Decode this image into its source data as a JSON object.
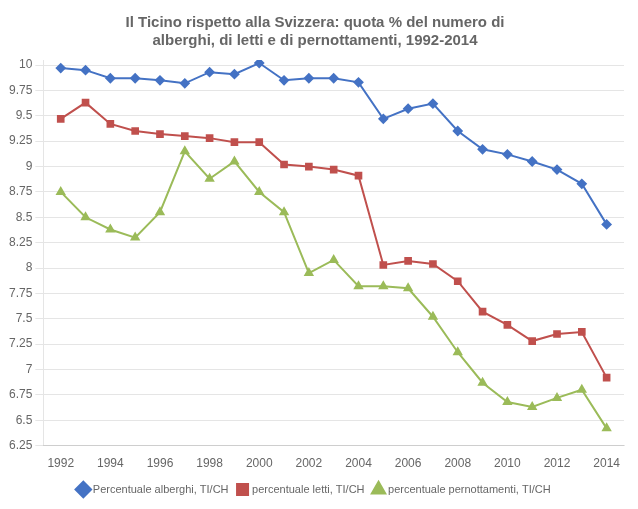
{
  "chart_data": {
    "type": "line",
    "title": "Il Ticino rispetto alla Svizzera: quota % del numero di\nalberghi, di letti e di pernottamenti, 1992-2014",
    "x": [
      1992,
      1993,
      1994,
      1995,
      1996,
      1997,
      1998,
      1999,
      2000,
      2001,
      2002,
      2003,
      2004,
      2005,
      2006,
      2007,
      2008,
      2009,
      2010,
      2011,
      2012,
      2013,
      2014
    ],
    "series": [
      {
        "name": "Percentuale alberghi, TI/CH",
        "color": "#4472C4",
        "marker": "diamond",
        "values": [
          9.97,
          9.95,
          9.87,
          9.87,
          9.85,
          9.82,
          9.93,
          9.91,
          10.02,
          9.85,
          9.87,
          9.87,
          9.83,
          9.47,
          9.57,
          9.62,
          9.35,
          9.17,
          9.12,
          9.05,
          8.97,
          8.83,
          8.43
        ]
      },
      {
        "name": "percentuale letti, TI/CH",
        "color": "#C0504D",
        "marker": "square",
        "values": [
          9.47,
          9.63,
          9.42,
          9.35,
          9.32,
          9.3,
          9.28,
          9.24,
          9.24,
          9.02,
          9.0,
          8.97,
          8.91,
          8.03,
          8.07,
          8.04,
          7.87,
          7.57,
          7.44,
          7.28,
          7.35,
          7.37,
          6.92
        ]
      },
      {
        "name": "percentuale pernottamenti, TI/CH",
        "color": "#9BBB59",
        "marker": "triangle",
        "values": [
          8.75,
          8.5,
          8.38,
          8.3,
          8.55,
          9.15,
          8.88,
          9.05,
          8.75,
          8.55,
          7.95,
          8.08,
          7.82,
          7.82,
          7.8,
          7.52,
          7.17,
          6.87,
          6.68,
          6.63,
          6.72,
          6.8,
          6.42
        ]
      }
    ],
    "xlim": [
      1991.3,
      2014.7
    ],
    "xticks": [
      1992,
      1994,
      1996,
      1998,
      2000,
      2002,
      2004,
      2006,
      2008,
      2010,
      2012,
      2014
    ],
    "ylim": [
      6.25,
      10.05
    ],
    "yticks": [
      6.25,
      6.5,
      6.75,
      7,
      7.25,
      7.5,
      7.75,
      8,
      8.25,
      8.5,
      8.75,
      9,
      9.25,
      9.5,
      9.75,
      10
    ],
    "grid": "y",
    "legend": "bottom"
  }
}
